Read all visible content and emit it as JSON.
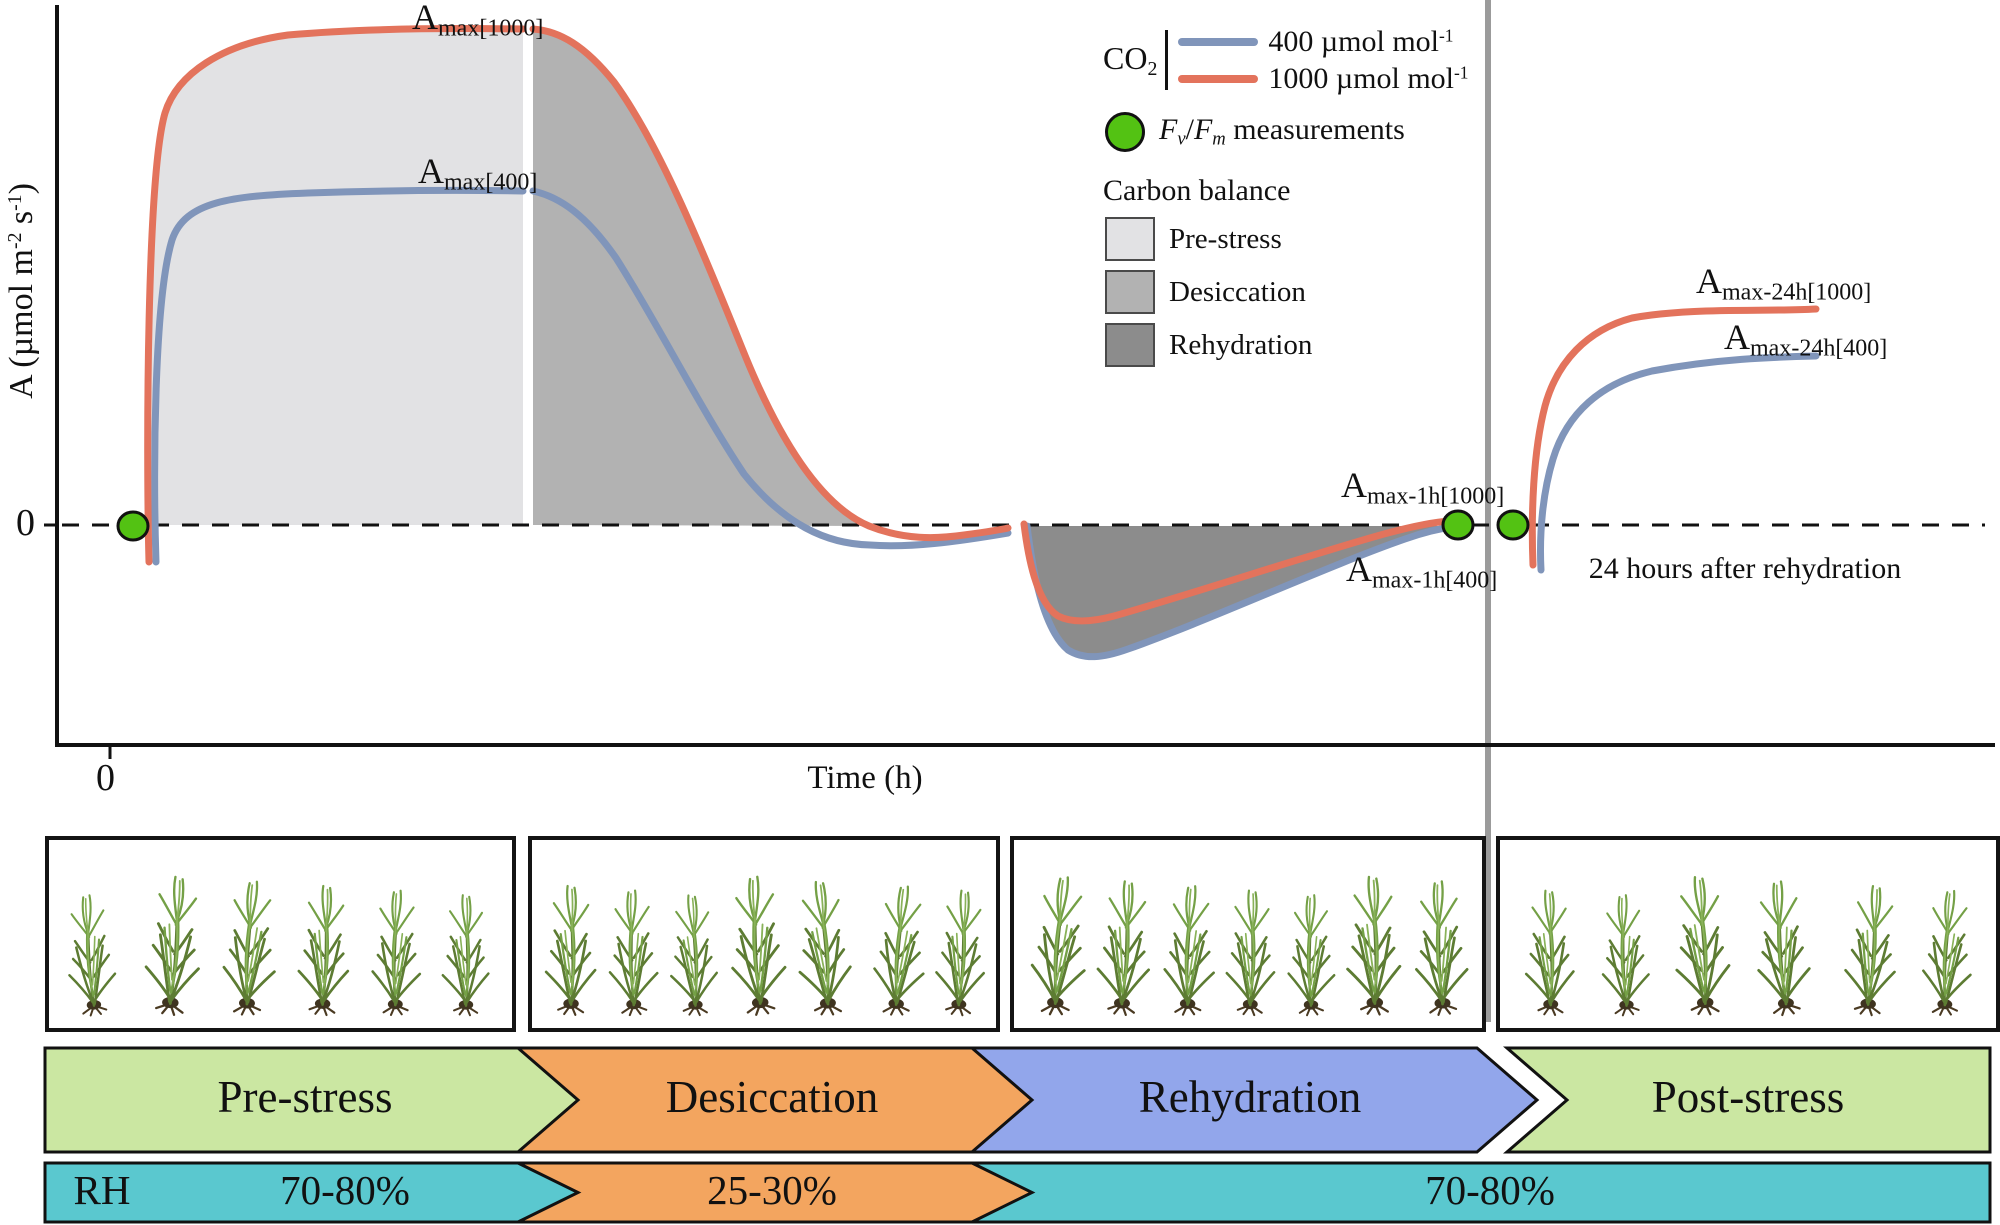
{
  "colors": {
    "co2_400": "#8095ba",
    "co2_1000": "#e3735c",
    "fvfm_dot": "#53c213",
    "fill_pre_stress": "#e2e2e4",
    "fill_desiccation": "#b2b2b2",
    "fill_rehydration": "#8c8c8c",
    "banner_green": "#cbe7a2",
    "banner_orange": "#f3a55f",
    "banner_blue": "#92a6eb",
    "banner_teal": "#5ac8cf",
    "separator_gray": "#9b9b9b",
    "axis_black": "#111111"
  },
  "axes": {
    "y_label_parts": {
      "pre": "A (µmol m",
      "sup1": "-2",
      "mid": " s",
      "sup2": "-1",
      "post": ")"
    },
    "x_label": "Time (h)",
    "y_zero_tick": "0",
    "x_zero_tick": "0"
  },
  "legend": {
    "co2": {
      "label": "CO",
      "sub": "2"
    },
    "series": [
      {
        "label": "400 µmol mol",
        "sup": "-1"
      },
      {
        "label": "1000 µmol mol",
        "sup": "-1"
      }
    ],
    "fvfm": {
      "f1": "F",
      "s1": "v",
      "slash": "/",
      "f2": "F",
      "s2": "m",
      "rest": " measurements"
    },
    "carbon_balance_title": "Carbon balance",
    "areas": [
      {
        "label": "Pre-stress"
      },
      {
        "label": "Desiccation"
      },
      {
        "label": "Rehydration"
      }
    ]
  },
  "annotations": {
    "amax_1000": {
      "base": "A",
      "sub": "max[1000]"
    },
    "amax_400": {
      "base": "A",
      "sub": "max[400]"
    },
    "amax_1h_1000": {
      "base": "A",
      "sub": "max-1h[1000]"
    },
    "amax_1h_400": {
      "base": "A",
      "sub": "max-1h[400]"
    },
    "amax_24h_1000": {
      "base": "A",
      "sub": "max-24h[1000]"
    },
    "amax_24h_400": {
      "base": "A",
      "sub": "max-24h[400]"
    },
    "hours_note": "24 hours after rehydration"
  },
  "stages": [
    {
      "label": "Pre-stress"
    },
    {
      "label": "Desiccation"
    },
    {
      "label": "Rehydration"
    },
    {
      "label": "Post-stress"
    }
  ],
  "rh": {
    "label": "RH",
    "segments": [
      {
        "label": "70-80%"
      },
      {
        "label": "25-30%"
      },
      {
        "label": "70-80%"
      }
    ]
  },
  "moss_boxes": [
    {
      "plant_count": 6
    },
    {
      "plant_count": 7
    },
    {
      "plant_count": 7
    },
    {
      "plant_count": 6
    }
  ],
  "chart_data": {
    "type": "line",
    "title": "Schematic net CO2 assimilation (A) through desiccation-rehydration experiment",
    "xlabel": "Time (h)",
    "ylabel": "A (µmol m-2 s-1)",
    "x_tick_labels": [
      "0"
    ],
    "y_tick_labels": [
      "0"
    ],
    "grid": false,
    "legend_position": "top-right",
    "zero_line": "dashed horizontal at A = 0",
    "series": [
      {
        "name": "CO2 400 µmol mol-1",
        "color": "#8095ba",
        "values_relative_to_Amax1000": {
          "pre_stress_plateau_Amax400": 0.68,
          "desiccation_end": -0.03,
          "rehydration_minimum": -0.26,
          "rehydration_1h_Amax1h400": 0.0,
          "post_stress_24h_Amax24h400": 0.34
        }
      },
      {
        "name": "CO2 1000 µmol mol-1",
        "color": "#e3735c",
        "values_relative_to_Amax1000": {
          "pre_stress_plateau_Amax1000": 1.0,
          "desiccation_end": -0.02,
          "rehydration_minimum": -0.19,
          "rehydration_1h_Amax1h1000": 0.01,
          "post_stress_24h_Amax24h1000": 0.44
        }
      }
    ],
    "shaded_carbon_balance_areas": [
      {
        "name": "Pre-stress",
        "sign": "positive",
        "fill": "#e2e2e4"
      },
      {
        "name": "Desiccation",
        "sign": "positive",
        "fill": "#b2b2b2"
      },
      {
        "name": "Rehydration",
        "sign": "negative",
        "fill": "#8c8c8c"
      }
    ],
    "fvfm_measurement_points": [
      "start of pre-stress (t = 0)",
      "end of rehydration (Amax-1h)",
      "start of post-stress (24 hours after rehydration)"
    ],
    "phases": [
      "Pre-stress",
      "Desiccation",
      "Rehydration",
      "Post-stress"
    ],
    "relative_humidity_by_phase": {
      "Pre-stress": "70-80%",
      "Desiccation": "25-30%",
      "Rehydration": "70-80%",
      "Post-stress": "70-80%"
    }
  }
}
